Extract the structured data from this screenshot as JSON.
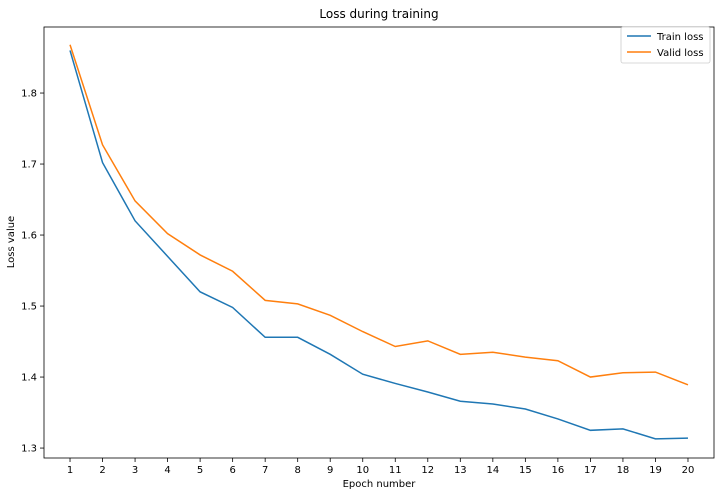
{
  "chart_data": {
    "type": "line",
    "title": "Loss during training",
    "xlabel": "Epoch number",
    "ylabel": "Loss value",
    "x": [
      1,
      2,
      3,
      4,
      5,
      6,
      7,
      8,
      9,
      10,
      11,
      12,
      13,
      14,
      15,
      16,
      17,
      18,
      19,
      20
    ],
    "xticks": [
      "1",
      "2",
      "3",
      "4",
      "5",
      "6",
      "7",
      "8",
      "9",
      "10",
      "11",
      "12",
      "13",
      "14",
      "15",
      "16",
      "17",
      "18",
      "19",
      "20"
    ],
    "yticks": [
      "1.3",
      "1.4",
      "1.5",
      "1.6",
      "1.7",
      "1.8"
    ],
    "ytick_values": [
      1.3,
      1.4,
      1.5,
      1.6,
      1.7,
      1.8
    ],
    "xlim": [
      0.2,
      20.8
    ],
    "ylim": [
      1.286,
      1.893
    ],
    "grid": false,
    "legend_position": "top-right",
    "series": [
      {
        "name": "Train loss",
        "color": "#1f77b4",
        "values": [
          1.86,
          1.702,
          1.62,
          1.57,
          1.52,
          1.498,
          1.456,
          1.456,
          1.432,
          1.404,
          1.391,
          1.379,
          1.366,
          1.362,
          1.355,
          1.341,
          1.325,
          1.327,
          1.313,
          1.314
        ]
      },
      {
        "name": "Valid loss",
        "color": "#ff7f0e",
        "values": [
          1.868,
          1.727,
          1.648,
          1.602,
          1.572,
          1.549,
          1.508,
          1.503,
          1.487,
          1.464,
          1.443,
          1.451,
          1.432,
          1.435,
          1.428,
          1.423,
          1.4,
          1.406,
          1.407,
          1.389
        ]
      }
    ]
  }
}
